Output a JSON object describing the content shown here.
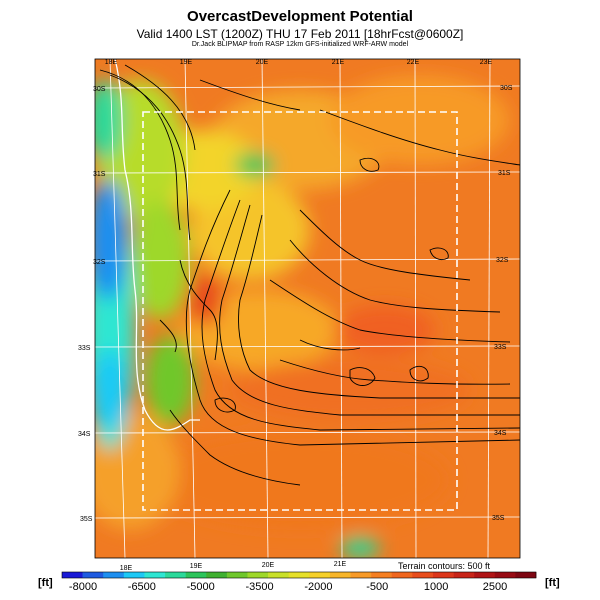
{
  "header": {
    "title": "OvercastDevelopment Potential",
    "subtitle": "Valid 1400 LST (1200Z) THU 17 Feb 2011 [18hrFcst@0600Z]",
    "credit": "Dr.Jack BLIPMAP from RASP 12km GFS-initialized WRF-ARW model"
  },
  "map": {
    "lon_labels_top": [
      "18E",
      "19E",
      "20E",
      "21E",
      "22E",
      "23E"
    ],
    "lon_labels_bottom": [
      "18E",
      "19E",
      "20E",
      "21E"
    ],
    "lat_labels_left": [
      "30S",
      "31S",
      "32S",
      "33S",
      "34S",
      "35S"
    ],
    "lat_labels_right": [
      "30S",
      "31S",
      "32S",
      "33S",
      "34S",
      "35S"
    ],
    "terrain_note": "Terrain contours: 500 ft"
  },
  "colorbar": {
    "unit_left": "[ft]",
    "unit_right": "[ft]",
    "tick_labels": [
      "-8000",
      "-6500",
      "-5000",
      "-3500",
      "-2000",
      "-500",
      "1000",
      "2500"
    ],
    "colors": [
      "#1a1ad6",
      "#1f5be0",
      "#1e8ff0",
      "#1ec9f5",
      "#2ee6d2",
      "#2bd99a",
      "#2cc45a",
      "#3fb030",
      "#6fc72c",
      "#9ed82a",
      "#c9e02a",
      "#e6e02a",
      "#f5d02a",
      "#f7b52a",
      "#f79a28",
      "#f57f22",
      "#f0661e",
      "#e84d1c",
      "#dc361a",
      "#c82418",
      "#b01416",
      "#980b14",
      "#7e0612"
    ]
  }
}
